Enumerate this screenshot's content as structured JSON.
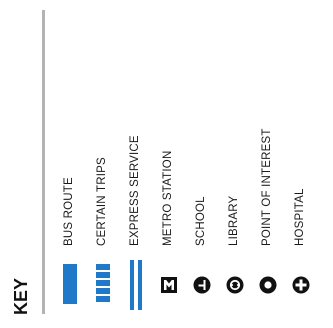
{
  "key": {
    "title": "KEY",
    "rule_color": "#b3b3b3"
  },
  "legend": [
    {
      "label": "BUS ROUTE",
      "icon": "solid-blue-line-icon",
      "color": "#1f78c8"
    },
    {
      "label": "CERTAIN TRIPS",
      "icon": "dashed-blue-line-icon",
      "color": "#1f78c8"
    },
    {
      "label": "EXPRESS SERVICE",
      "icon": "double-blue-line-icon",
      "color": "#1f78c8"
    },
    {
      "label": "METRO STATION",
      "icon": "metro-station-icon",
      "color": "#111111"
    },
    {
      "label": "SCHOOL",
      "icon": "school-icon",
      "color": "#111111"
    },
    {
      "label": "LIBRARY",
      "icon": "library-icon",
      "color": "#111111"
    },
    {
      "label": "POINT OF INTEREST",
      "icon": "point-of-interest-icon",
      "color": "#111111"
    },
    {
      "label": "HOSPITAL",
      "icon": "hospital-icon",
      "color": "#111111"
    }
  ]
}
